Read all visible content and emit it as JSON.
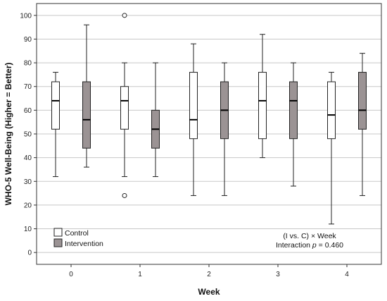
{
  "chart_data": {
    "type": "boxplot",
    "xlabel": "Week",
    "ylabel": "WHO-5 Well-Being (Higher = Better)",
    "ylim": [
      -5,
      105
    ],
    "yticks": [
      0,
      10,
      20,
      30,
      40,
      50,
      60,
      70,
      80,
      90,
      100
    ],
    "categories": [
      "0",
      "1",
      "2",
      "3",
      "4"
    ],
    "grid": "horizontal",
    "legend_position": "bottom-left",
    "series": [
      {
        "name": "Control",
        "color": "#ffffff",
        "boxes": [
          {
            "min": 32,
            "q1": 52,
            "median": 64,
            "q3": 72,
            "max": 76,
            "outliers": []
          },
          {
            "min": 32,
            "q1": 52,
            "median": 64,
            "q3": 70,
            "max": 80,
            "outliers": [
              100,
              24
            ]
          },
          {
            "min": 24,
            "q1": 48,
            "median": 56,
            "q3": 76,
            "max": 88,
            "outliers": []
          },
          {
            "min": 40,
            "q1": 48,
            "median": 64,
            "q3": 76,
            "max": 92,
            "outliers": []
          },
          {
            "min": 12,
            "q1": 48,
            "median": 58,
            "q3": 72,
            "max": 76,
            "outliers": []
          }
        ]
      },
      {
        "name": "Intervention",
        "color": "#9b9394",
        "boxes": [
          {
            "min": 36,
            "q1": 44,
            "median": 56,
            "q3": 72,
            "max": 96,
            "outliers": []
          },
          {
            "min": 32,
            "q1": 44,
            "median": 52,
            "q3": 60,
            "max": 80,
            "outliers": []
          },
          {
            "min": 24,
            "q1": 48,
            "median": 60,
            "q3": 72,
            "max": 80,
            "outliers": []
          },
          {
            "min": 28,
            "q1": 48,
            "median": 64,
            "q3": 72,
            "max": 80,
            "outliers": []
          },
          {
            "min": 24,
            "q1": 52,
            "median": 60,
            "q3": 76,
            "max": 84,
            "outliers": []
          }
        ]
      }
    ],
    "annotation": {
      "line1": "(I vs. C) × Week",
      "line2_prefix": "Interaction ",
      "line2_italic": "p",
      "line2_suffix": " = 0.460"
    }
  }
}
